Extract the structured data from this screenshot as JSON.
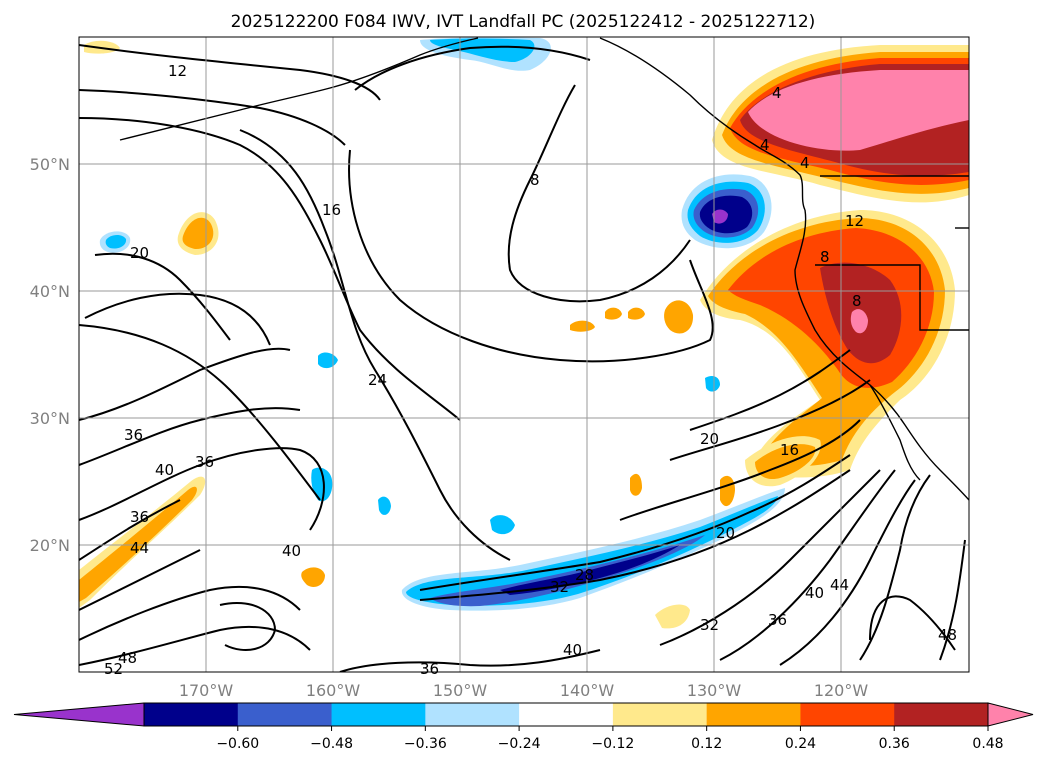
{
  "chart_data": {
    "type": "heatmap",
    "title": "2025122200 F084 IWV, IVT Landfall PC (2025122412 - 2025122712)",
    "xlabel": "",
    "ylabel": "",
    "lon_range": [
      -180,
      -110
    ],
    "lat_range": [
      10,
      60
    ],
    "lon_ticks": [
      -170,
      -160,
      -150,
      -140,
      -130,
      -120
    ],
    "lon_tick_labels": [
      "170°W",
      "160°W",
      "150°W",
      "140°W",
      "130°W",
      "120°W"
    ],
    "lat_ticks": [
      20,
      30,
      40,
      50
    ],
    "lat_tick_labels": [
      "20°N",
      "30°N",
      "40°N",
      "50°N"
    ],
    "grid": true,
    "colorbar": {
      "orientation": "horizontal",
      "placement": "bottom",
      "extend": "both",
      "levels": [
        -0.72,
        -0.6,
        -0.48,
        -0.36,
        -0.24,
        -0.12,
        0.12,
        0.24,
        0.36,
        0.48,
        0.6,
        0.72
      ],
      "tick_values": [
        -0.6,
        -0.48,
        -0.36,
        -0.24,
        -0.12,
        0.12,
        0.24,
        0.36,
        0.48,
        0.6
      ],
      "tick_labels": [
        "−0.60",
        "−0.48",
        "−0.36",
        "−0.24",
        "−0.12",
        "0.12",
        "0.24",
        "0.36",
        "0.48",
        "0.60"
      ],
      "colors": [
        "#9933cc",
        "#00008b",
        "#3a5fcd",
        "#00bfff",
        "#b0e2ff",
        "#ffffff",
        "#ffe98c",
        "#ffa500",
        "#ff4500",
        "#b22222",
        "#ff82ab"
      ]
    },
    "contour_labels": [
      "12",
      "8",
      "4",
      "4",
      "4",
      "12",
      "8",
      "8",
      "16",
      "20",
      "24",
      "36",
      "36",
      "40",
      "36",
      "44",
      "40",
      "20",
      "16",
      "20",
      "28",
      "32",
      "32",
      "36",
      "40",
      "44",
      "36",
      "40",
      "48",
      "52",
      "48"
    ],
    "shaded_regions": [
      {
        "name": "pacific-northwest-positive",
        "lon": -121,
        "lat": 53,
        "value": 0.6
      },
      {
        "name": "california-positive",
        "lon": -121,
        "lat": 38,
        "value": 0.48
      },
      {
        "name": "offshore-negative",
        "lon": -132,
        "lat": 45.5,
        "value": -0.6
      },
      {
        "name": "subtropical-band-negative",
        "lon": -142,
        "lat": 17,
        "value": -0.48
      },
      {
        "name": "southwest-positive",
        "lon": -177,
        "lat": 20,
        "value": 0.36
      },
      {
        "name": "baja-positive",
        "lon": -126,
        "lat": 26,
        "value": 0.36
      }
    ]
  }
}
